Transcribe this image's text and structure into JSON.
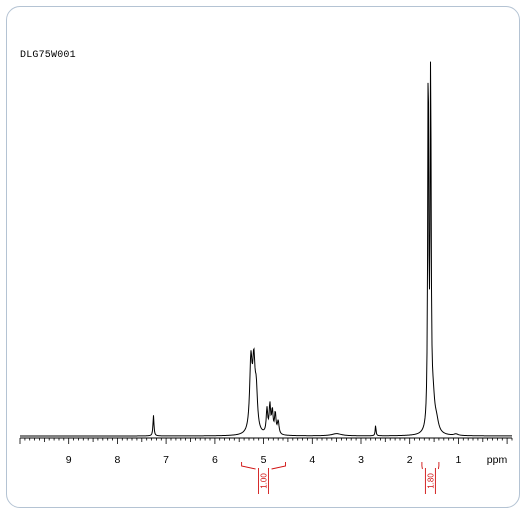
{
  "sample_id": "DLG75W001",
  "colors": {
    "spectrum": "#000000",
    "integral": "#d01010",
    "frame": "#b4c3d3"
  },
  "chart_data": {
    "type": "line",
    "title": "",
    "xlabel": "ppm",
    "ylabel": "",
    "x_reversed": true,
    "xlim": [
      10.0,
      -0.1
    ],
    "ylim": [
      0,
      100
    ],
    "x_ticks": [
      9,
      8,
      7,
      6,
      5,
      4,
      3,
      2,
      1
    ],
    "x_tick_labels": [
      "9",
      "8",
      "7",
      "6",
      "5",
      "4",
      "3",
      "2",
      "1"
    ],
    "x_unit_label": "ppm",
    "peaks": [
      {
        "ppm": 7.26,
        "height": 5.5,
        "width": 0.012
      },
      {
        "ppm": 5.26,
        "height": 18.5,
        "width": 0.03
      },
      {
        "ppm": 5.2,
        "height": 17.0,
        "width": 0.03
      },
      {
        "ppm": 5.15,
        "height": 10.0,
        "width": 0.03
      },
      {
        "ppm": 4.93,
        "height": 6.5,
        "width": 0.018
      },
      {
        "ppm": 4.87,
        "height": 7.5,
        "width": 0.018
      },
      {
        "ppm": 4.82,
        "height": 6.0,
        "width": 0.018
      },
      {
        "ppm": 4.76,
        "height": 5.5,
        "width": 0.018
      },
      {
        "ppm": 4.7,
        "height": 3.5,
        "width": 0.02
      },
      {
        "ppm": 3.5,
        "height": 0.6,
        "width": 0.12
      },
      {
        "ppm": 2.7,
        "height": 2.8,
        "width": 0.01
      },
      {
        "ppm": 1.62,
        "height": 100.0,
        "width": 0.012
      },
      {
        "ppm": 1.57,
        "height": 96.0,
        "width": 0.012
      },
      {
        "ppm": 1.52,
        "height": 8.0,
        "width": 0.04
      },
      {
        "ppm": 1.45,
        "height": 3.0,
        "width": 0.05
      },
      {
        "ppm": 1.05,
        "height": 0.4,
        "width": 0.05
      }
    ],
    "integrals": [
      {
        "from": 5.45,
        "to": 4.55,
        "value": "1.00"
      },
      {
        "from": 1.75,
        "to": 1.4,
        "value": "1.80"
      }
    ]
  }
}
